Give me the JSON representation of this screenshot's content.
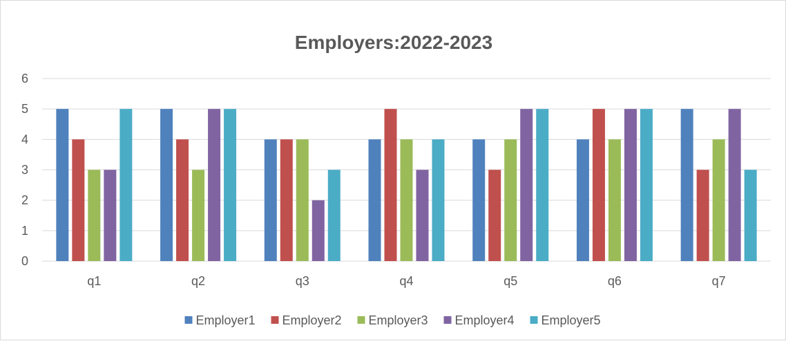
{
  "chart_data": {
    "type": "bar",
    "title": "Employers:2022-2023",
    "xlabel": "",
    "ylabel": "",
    "categories": [
      "q1",
      "q2",
      "q3",
      "q4",
      "q5",
      "q6",
      "q7"
    ],
    "ylim": [
      0,
      6
    ],
    "yticks": [
      "0",
      "1",
      "2",
      "3",
      "4",
      "5",
      "6"
    ],
    "grid": true,
    "legend_position": "bottom",
    "series": [
      {
        "name": "Employer1",
        "color": "#4f81bd",
        "values": [
          5,
          5,
          4,
          4,
          4,
          4,
          5
        ]
      },
      {
        "name": "Employer2",
        "color": "#c0504d",
        "values": [
          4,
          4,
          4,
          5,
          3,
          5,
          3
        ]
      },
      {
        "name": "Employer3",
        "color": "#9bbb59",
        "values": [
          3,
          3,
          4,
          4,
          4,
          4,
          4
        ]
      },
      {
        "name": "Employer4",
        "color": "#8064a2",
        "values": [
          3,
          5,
          2,
          3,
          5,
          5,
          5
        ]
      },
      {
        "name": "Employer5",
        "color": "#4bacc6",
        "values": [
          5,
          5,
          3,
          4,
          5,
          5,
          3
        ]
      }
    ]
  }
}
